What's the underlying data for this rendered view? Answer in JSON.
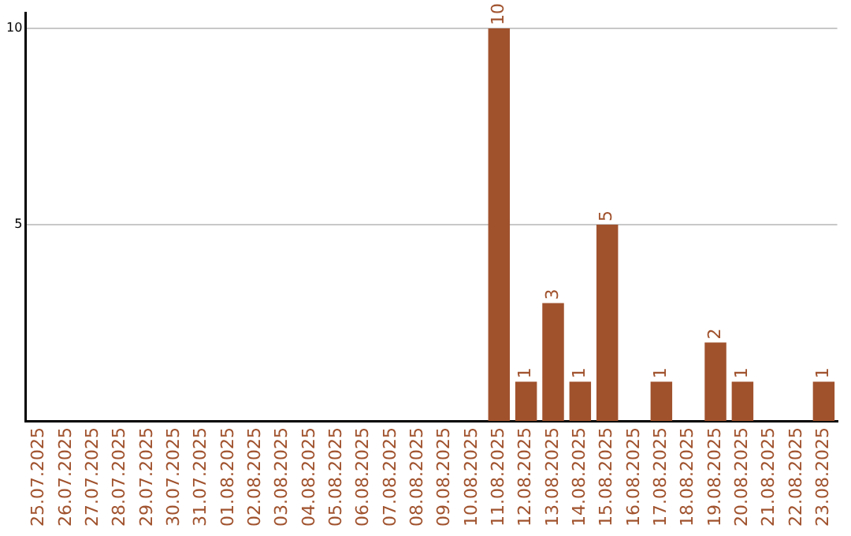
{
  "chart_data": {
    "type": "bar",
    "categories": [
      "25.07.2025",
      "26.07.2025",
      "27.07.2025",
      "28.07.2025",
      "29.07.2025",
      "30.07.2025",
      "31.07.2025",
      "01.08.2025",
      "02.08.2025",
      "03.08.2025",
      "04.08.2025",
      "05.08.2025",
      "06.08.2025",
      "07.08.2025",
      "08.08.2025",
      "09.08.2025",
      "10.08.2025",
      "11.08.2025",
      "12.08.2025",
      "13.08.2025",
      "14.08.2025",
      "15.08.2025",
      "16.08.2025",
      "17.08.2025",
      "18.08.2025",
      "19.08.2025",
      "20.08.2025",
      "21.08.2025",
      "22.08.2025",
      "23.08.2025"
    ],
    "values": [
      0,
      0,
      0,
      0,
      0,
      0,
      0,
      0,
      0,
      0,
      0,
      0,
      0,
      0,
      0,
      0,
      0,
      10,
      1,
      3,
      1,
      5,
      0,
      1,
      0,
      2,
      1,
      0,
      0,
      1
    ],
    "value_labels": [
      null,
      null,
      null,
      null,
      null,
      null,
      null,
      null,
      null,
      null,
      null,
      null,
      null,
      null,
      null,
      null,
      null,
      "10",
      "1",
      "3",
      "1",
      "5",
      null,
      "1",
      null,
      "2",
      "1",
      null,
      null,
      "1"
    ],
    "color": "#a0522d",
    "ylim": [
      0,
      10.4
    ],
    "yticks": [
      5,
      10
    ],
    "grid": "y",
    "legend": false
  }
}
